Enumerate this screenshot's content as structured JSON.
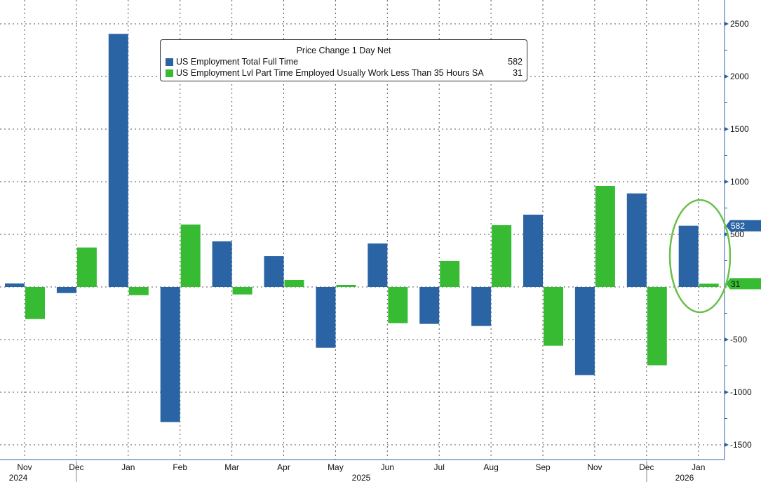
{
  "chart_data": {
    "type": "bar",
    "legend_title": "Price Change 1 Day Net",
    "legend_placement": "top-center",
    "categories": [
      "Nov",
      "Dec",
      "Jan",
      "Feb",
      "Mar",
      "Apr",
      "May",
      "Jun",
      "Jul",
      "Aug",
      "Sep",
      "Nov",
      "Dec",
      "Jan"
    ],
    "year_labels": [
      "2024",
      "2025",
      "2026"
    ],
    "series": [
      {
        "name": "US Employment Total Full Time",
        "last_value": "582",
        "color": "#2a64a4",
        "values": [
          33,
          -58,
          2405,
          -1284,
          433,
          293,
          -578,
          413,
          -351,
          -371,
          687,
          -838,
          889,
          582
        ]
      },
      {
        "name": "US Employment Lvl Part Time Employed Usually Work Less Than 35 Hours SA",
        "last_value": "31",
        "color": "#36bb33",
        "values": [
          -305,
          375,
          -78,
          593,
          -71,
          67,
          20,
          -344,
          247,
          587,
          -558,
          960,
          -744,
          31
        ]
      }
    ],
    "y_ticks": [
      "2500",
      "2000",
      "1500",
      "1000",
      "500",
      "-500",
      "-1000",
      "-1500"
    ],
    "ylim": [
      -1650,
      2750
    ],
    "y_axis_position": "right",
    "grid": true,
    "annotation": "ellipse highlighting latest month",
    "annotation_color": "#6abf4b"
  }
}
